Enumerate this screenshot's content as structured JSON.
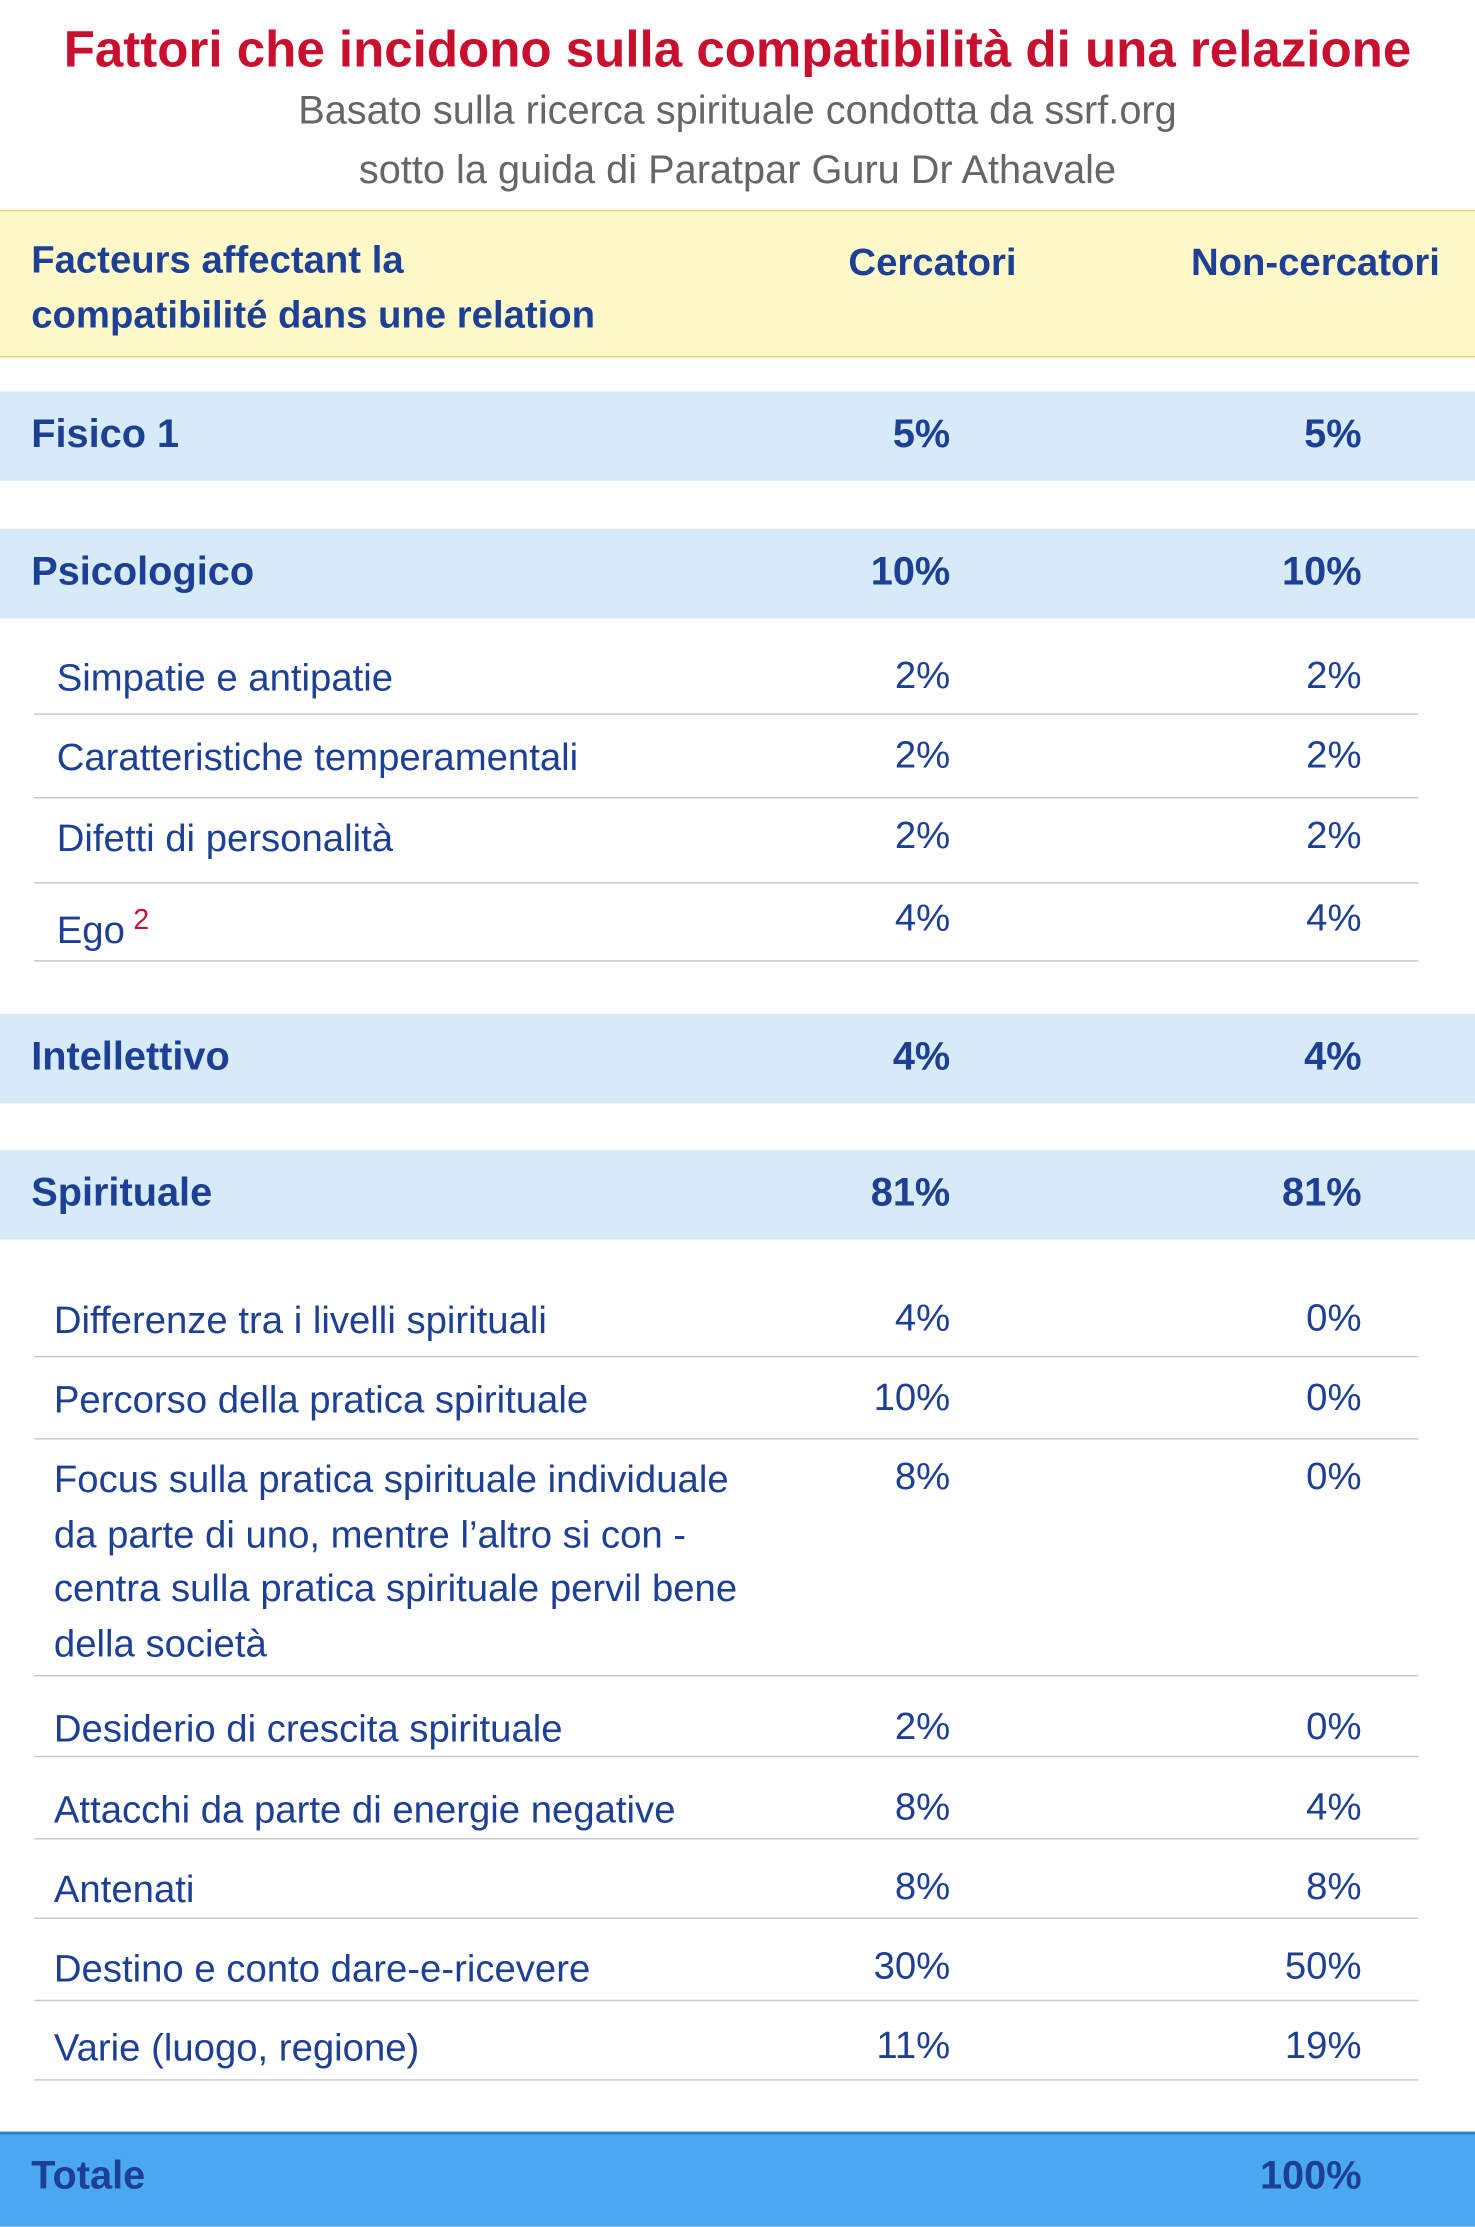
{
  "header": {
    "title": "Fattori che incidono sulla compatibilità di una relazione",
    "subtitle": [
      "Basato sulla ricerca spirituale condotta da ssrf.org",
      "sotto la guida di Paratpar Guru Dr Athavale"
    ]
  },
  "table": {
    "columns": [
      "Facteurs affectant la\ncompatibilité dans une relation",
      "Cercatori",
      "Non-cercatori"
    ],
    "sections": [
      {
        "label": "Fisico 1",
        "cercatori": "5%",
        "non_cercatori": "5%",
        "items": []
      },
      {
        "label": "Psicologico",
        "cercatori": "10%",
        "non_cercatori": "10%",
        "items": [
          {
            "label": "Simpatie e antipatie",
            "cercatori": "2%",
            "non_cercatori": "2%"
          },
          {
            "label": "Caratteristiche temperamentali",
            "cercatori": "2%",
            "non_cercatori": "2%"
          },
          {
            "label": "Difetti di personalità",
            "cercatori": "2%",
            "non_cercatori": "2%"
          },
          {
            "label": "Ego",
            "footnote": "2",
            "cercatori": "4%",
            "non_cercatori": "4%"
          }
        ]
      },
      {
        "label": "Intellettivo",
        "cercatori": "4%",
        "non_cercatori": "4%",
        "items": []
      },
      {
        "label": "Spirituale",
        "cercatori": "81%",
        "non_cercatori": "81%",
        "items": [
          {
            "label": "Differenze tra i livelli spirituali",
            "cercatori": "4%",
            "non_cercatori": "0%"
          },
          {
            "label": "Percorso della pratica spirituale",
            "cercatori": "10%",
            "non_cercatori": "0%"
          },
          {
            "label": "Focus sulla pratica spirituale individuale\nda parte di uno, mentre l’altro si con -\ncentra sulla pratica spirituale pervil bene\ndella società",
            "cercatori": "8%",
            "non_cercatori": "0%"
          },
          {
            "label": "Desiderio di crescita spirituale",
            "cercatori": "2%",
            "non_cercatori": "0%"
          },
          {
            "label": "Attacchi da parte di energie negative",
            "cercatori": "8%",
            "non_cercatori": "4%"
          },
          {
            "label": "Antenati",
            "cercatori": "8%",
            "non_cercatori": "8%"
          },
          {
            "label": "Destino e conto dare-e-ricevere",
            "cercatori": "30%",
            "non_cercatori": "50%"
          },
          {
            "label": "Varie (luogo, regione)",
            "cercatori": "11%",
            "non_cercatori": "19%"
          }
        ]
      }
    ],
    "total": {
      "label": "Totale",
      "non_cercatori": "100%"
    }
  }
}
